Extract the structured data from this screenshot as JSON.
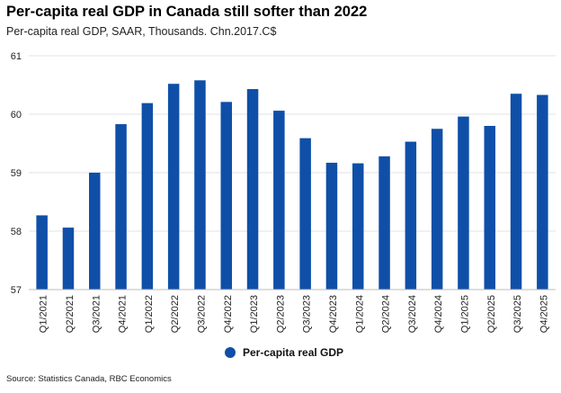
{
  "chart_data": {
    "type": "bar",
    "title": "Per-capita real GDP in Canada still softer than 2022",
    "subtitle": "Per-capita real GDP,  SAAR, Thousands. Chn.2017.C$",
    "categories": [
      "Q1/2021",
      "Q2/2021",
      "Q3/2021",
      "Q4/2021",
      "Q1/2022",
      "Q2/2022",
      "Q3/2022",
      "Q4/2022",
      "Q1/2023",
      "Q2/2023",
      "Q3/2023",
      "Q4/2023",
      "Q1/2024",
      "Q2/2024",
      "Q3/2024",
      "Q4/2024",
      "Q1/2025",
      "Q2/2025",
      "Q3/2025",
      "Q4/2025"
    ],
    "series": [
      {
        "name": "Per-capita real GDP",
        "values": [
          58.27,
          58.06,
          59.0,
          59.83,
          60.19,
          60.52,
          60.58,
          60.21,
          60.43,
          60.06,
          59.59,
          59.17,
          59.16,
          59.28,
          59.53,
          59.75,
          59.96,
          59.8,
          60.35,
          60.33
        ]
      }
    ],
    "xlabel": "",
    "ylabel": "",
    "ylim": [
      57,
      61
    ],
    "yticks": [
      "57",
      "58",
      "59",
      "60",
      "61"
    ],
    "grid": true,
    "legend": "bottom-center",
    "color": "#0f4fa8",
    "source": "Source: Statistics Canada, RBC Economics"
  }
}
